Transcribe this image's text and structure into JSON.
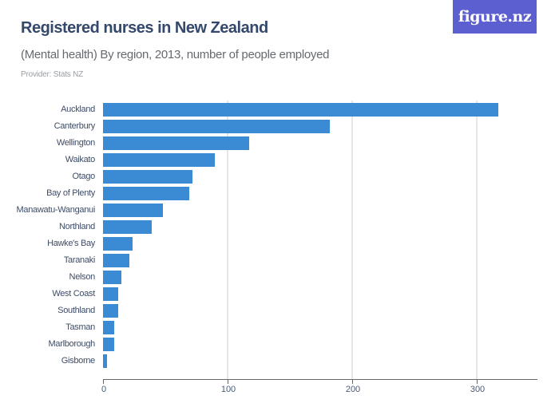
{
  "header": {
    "title": "Registered nurses in New Zealand",
    "subtitle": "(Mental health) By region, 2013, number of people employed",
    "provider": "Provider: Stats NZ",
    "logo": "figure.nz"
  },
  "colors": {
    "bar": "#3a8ad4",
    "title": "#34486b",
    "logo_bg": "#5b5fd0"
  },
  "chart_data": {
    "type": "bar",
    "orientation": "horizontal",
    "title": "Registered nurses in New Zealand",
    "subtitle": "(Mental health) By region, 2013, number of people employed",
    "categories": [
      "Auckland",
      "Canterbury",
      "Wellington",
      "Waikato",
      "Otago",
      "Bay of Plenty",
      "Manawatu-Wanganui",
      "Northland",
      "Hawke's Bay",
      "Taranaki",
      "Nelson",
      "West Coast",
      "Southland",
      "Tasman",
      "Marlborough",
      "Gisborne"
    ],
    "values": [
      317,
      182,
      117,
      90,
      72,
      69,
      48,
      39,
      24,
      21,
      15,
      12,
      12,
      9,
      9,
      3
    ],
    "xlabel": "",
    "ylabel": "",
    "xlim": [
      0,
      350
    ],
    "x_ticks": [
      "0",
      "100",
      "200",
      "300"
    ],
    "grid": true,
    "legend": "none"
  }
}
